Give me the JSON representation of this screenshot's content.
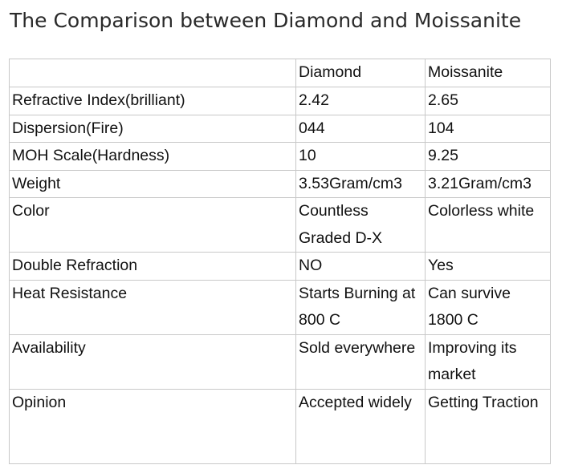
{
  "title": "The Comparison between Diamond and Moissanite",
  "table": {
    "headers": [
      "",
      "Diamond",
      "Moissanite"
    ],
    "rows": [
      {
        "property": "Refractive Index(brilliant)",
        "diamond": "2.42",
        "moissanite": "2.65"
      },
      {
        "property": "Dispersion(Fire)",
        "diamond": "044",
        "moissanite": "104"
      },
      {
        "property": "MOH Scale(Hardness)",
        "diamond": "10",
        "moissanite": "9.25"
      },
      {
        "property": "Weight",
        "diamond": "3.53Gram/cm3",
        "moissanite": "3.21Gram/cm3"
      },
      {
        "property": "Color",
        "diamond": "Countless Graded D-X",
        "moissanite": "Colorless white"
      },
      {
        "property": "Double Refraction",
        "diamond": "NO",
        "moissanite": "Yes"
      },
      {
        "property": "Heat Resistance",
        "diamond": "Starts Burning at 800 C",
        "moissanite": "Can survive 1800 C"
      },
      {
        "property": "Availability",
        "diamond": "Sold everywhere",
        "moissanite": "Improving its market"
      },
      {
        "property": "Opinion",
        "diamond": "Accepted widely",
        "moissanite": "Getting Traction"
      }
    ]
  }
}
